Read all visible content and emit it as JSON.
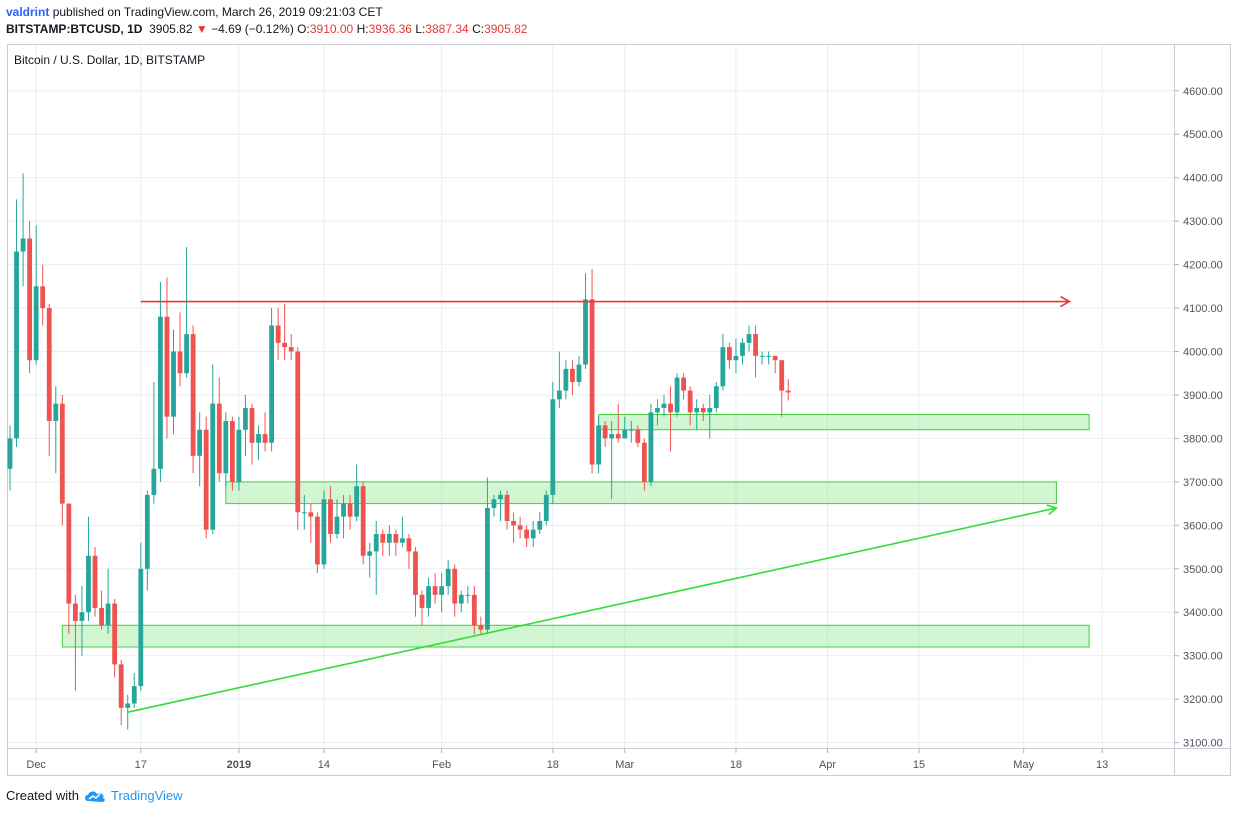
{
  "header": {
    "user": "valdrint",
    "published": "published on TradingView.com, March 26, 2019 09:21:03 CET",
    "symbol": "BITSTAMP:BTCUSD, 1D",
    "last": "3905.82",
    "change_arrow": "▼",
    "change": "−4.69 (−0.12%)",
    "o_label": "O:",
    "o": "3910.00",
    "h_label": "H:",
    "h": "3936.36",
    "l_label": "L:",
    "l": "3887.34",
    "c_label": "C:",
    "c": "3905.82"
  },
  "footer": {
    "created_with": "Created with",
    "brand": "TradingView"
  },
  "colors": {
    "up": "#26a69a",
    "down": "#ef5350",
    "resistance_line": "#e53935",
    "support_zone": "#5ee05e",
    "trendline": "#33dd33",
    "grid": "#e9eef3"
  },
  "chart_data": {
    "type": "candlestick",
    "title": "Bitcoin / U.S. Dollar, 1D, BITSTAMP",
    "ylim": [
      3060,
      4680
    ],
    "y_ticks": [
      "4600.00",
      "4500.00",
      "4400.00",
      "4300.00",
      "4200.00",
      "4100.00",
      "4000.00",
      "3900.00",
      "3800.00",
      "3700.00",
      "3600.00",
      "3500.00",
      "3400.00",
      "3300.00",
      "3200.00",
      "3100.00"
    ],
    "x_ticks": [
      "Dec",
      "17",
      "2019",
      "14",
      "Feb",
      "18",
      "Mar",
      "18",
      "Apr",
      "15",
      "May",
      "13"
    ],
    "grid": true,
    "candles": [
      {
        "date": "2018-11-27",
        "open": 3730,
        "high": 3830,
        "low": 3680,
        "close": 3800
      },
      {
        "date": "2018-11-28",
        "open": 3800,
        "high": 4350,
        "low": 3780,
        "close": 4230
      },
      {
        "date": "2018-11-29",
        "open": 4230,
        "high": 4410,
        "low": 4150,
        "close": 4260
      },
      {
        "date": "2018-11-30",
        "open": 4260,
        "high": 4300,
        "low": 3950,
        "close": 3980
      },
      {
        "date": "2018-12-01",
        "open": 3980,
        "high": 4290,
        "low": 3970,
        "close": 4150
      },
      {
        "date": "2018-12-02",
        "open": 4150,
        "high": 4200,
        "low": 4060,
        "close": 4100
      },
      {
        "date": "2018-12-03",
        "open": 4100,
        "high": 4110,
        "low": 3760,
        "close": 3840
      },
      {
        "date": "2018-12-04",
        "open": 3840,
        "high": 3920,
        "low": 3720,
        "close": 3880
      },
      {
        "date": "2018-12-05",
        "open": 3880,
        "high": 3900,
        "low": 3600,
        "close": 3650
      },
      {
        "date": "2018-12-06",
        "open": 3650,
        "high": 3650,
        "low": 3350,
        "close": 3420
      },
      {
        "date": "2018-12-07",
        "open": 3420,
        "high": 3440,
        "low": 3220,
        "close": 3380
      },
      {
        "date": "2018-12-08",
        "open": 3380,
        "high": 3460,
        "low": 3300,
        "close": 3400
      },
      {
        "date": "2018-12-09",
        "open": 3400,
        "high": 3620,
        "low": 3380,
        "close": 3530
      },
      {
        "date": "2018-12-10",
        "open": 3530,
        "high": 3550,
        "low": 3390,
        "close": 3410
      },
      {
        "date": "2018-12-11",
        "open": 3410,
        "high": 3450,
        "low": 3360,
        "close": 3370
      },
      {
        "date": "2018-12-12",
        "open": 3370,
        "high": 3500,
        "low": 3350,
        "close": 3420
      },
      {
        "date": "2018-12-13",
        "open": 3420,
        "high": 3430,
        "low": 3250,
        "close": 3280
      },
      {
        "date": "2018-12-14",
        "open": 3280,
        "high": 3290,
        "low": 3140,
        "close": 3180
      },
      {
        "date": "2018-12-15",
        "open": 3180,
        "high": 3210,
        "low": 3130,
        "close": 3190
      },
      {
        "date": "2018-12-16",
        "open": 3190,
        "high": 3260,
        "low": 3180,
        "close": 3230
      },
      {
        "date": "2018-12-17",
        "open": 3230,
        "high": 3560,
        "low": 3220,
        "close": 3500
      },
      {
        "date": "2018-12-18",
        "open": 3500,
        "high": 3680,
        "low": 3450,
        "close": 3670
      },
      {
        "date": "2018-12-19",
        "open": 3670,
        "high": 3930,
        "low": 3650,
        "close": 3730
      },
      {
        "date": "2018-12-20",
        "open": 3730,
        "high": 4160,
        "low": 3700,
        "close": 4080
      },
      {
        "date": "2018-12-21",
        "open": 4080,
        "high": 4170,
        "low": 3800,
        "close": 3850
      },
      {
        "date": "2018-12-22",
        "open": 3850,
        "high": 4050,
        "low": 3810,
        "close": 4000
      },
      {
        "date": "2018-12-23",
        "open": 4000,
        "high": 4090,
        "low": 3920,
        "close": 3950
      },
      {
        "date": "2018-12-24",
        "open": 3950,
        "high": 4240,
        "low": 3940,
        "close": 4040
      },
      {
        "date": "2018-12-25",
        "open": 4040,
        "high": 4060,
        "low": 3720,
        "close": 3760
      },
      {
        "date": "2018-12-26",
        "open": 3760,
        "high": 3860,
        "low": 3690,
        "close": 3820
      },
      {
        "date": "2018-12-27",
        "open": 3820,
        "high": 3850,
        "low": 3570,
        "close": 3590
      },
      {
        "date": "2018-12-28",
        "open": 3590,
        "high": 3970,
        "low": 3580,
        "close": 3880
      },
      {
        "date": "2018-12-29",
        "open": 3880,
        "high": 3940,
        "low": 3700,
        "close": 3720
      },
      {
        "date": "2018-12-30",
        "open": 3720,
        "high": 3860,
        "low": 3690,
        "close": 3840
      },
      {
        "date": "2018-12-31",
        "open": 3840,
        "high": 3850,
        "low": 3680,
        "close": 3700
      },
      {
        "date": "2019-01-01",
        "open": 3700,
        "high": 3850,
        "low": 3680,
        "close": 3820
      },
      {
        "date": "2019-01-02",
        "open": 3820,
        "high": 3900,
        "low": 3760,
        "close": 3870
      },
      {
        "date": "2019-01-03",
        "open": 3870,
        "high": 3880,
        "low": 3740,
        "close": 3790
      },
      {
        "date": "2019-01-04",
        "open": 3790,
        "high": 3830,
        "low": 3750,
        "close": 3810
      },
      {
        "date": "2019-01-05",
        "open": 3810,
        "high": 3860,
        "low": 3770,
        "close": 3790
      },
      {
        "date": "2019-01-06",
        "open": 3790,
        "high": 4100,
        "low": 3770,
        "close": 4060
      },
      {
        "date": "2019-01-07",
        "open": 4060,
        "high": 4100,
        "low": 3980,
        "close": 4020
      },
      {
        "date": "2019-01-08",
        "open": 4020,
        "high": 4110,
        "low": 3980,
        "close": 4010
      },
      {
        "date": "2019-01-09",
        "open": 4010,
        "high": 4040,
        "low": 3980,
        "close": 4000
      },
      {
        "date": "2019-01-10",
        "open": 4000,
        "high": 4010,
        "low": 3590,
        "close": 3630
      },
      {
        "date": "2019-01-11",
        "open": 3630,
        "high": 3670,
        "low": 3590,
        "close": 3630
      },
      {
        "date": "2019-01-12",
        "open": 3630,
        "high": 3650,
        "low": 3560,
        "close": 3620
      },
      {
        "date": "2019-01-13",
        "open": 3620,
        "high": 3630,
        "low": 3490,
        "close": 3510
      },
      {
        "date": "2019-01-14",
        "open": 3510,
        "high": 3680,
        "low": 3500,
        "close": 3660
      },
      {
        "date": "2019-01-15",
        "open": 3660,
        "high": 3690,
        "low": 3560,
        "close": 3580
      },
      {
        "date": "2019-01-16",
        "open": 3580,
        "high": 3660,
        "low": 3570,
        "close": 3620
      },
      {
        "date": "2019-01-17",
        "open": 3620,
        "high": 3670,
        "low": 3570,
        "close": 3650
      },
      {
        "date": "2019-01-18",
        "open": 3650,
        "high": 3670,
        "low": 3590,
        "close": 3620
      },
      {
        "date": "2019-01-19",
        "open": 3620,
        "high": 3740,
        "low": 3610,
        "close": 3690
      },
      {
        "date": "2019-01-20",
        "open": 3690,
        "high": 3700,
        "low": 3510,
        "close": 3530
      },
      {
        "date": "2019-01-21",
        "open": 3530,
        "high": 3560,
        "low": 3480,
        "close": 3540
      },
      {
        "date": "2019-01-22",
        "open": 3540,
        "high": 3610,
        "low": 3440,
        "close": 3580
      },
      {
        "date": "2019-01-23",
        "open": 3580,
        "high": 3590,
        "low": 3530,
        "close": 3560
      },
      {
        "date": "2019-01-24",
        "open": 3560,
        "high": 3600,
        "low": 3530,
        "close": 3580
      },
      {
        "date": "2019-01-25",
        "open": 3580,
        "high": 3590,
        "low": 3530,
        "close": 3560
      },
      {
        "date": "2019-01-26",
        "open": 3560,
        "high": 3620,
        "low": 3550,
        "close": 3570
      },
      {
        "date": "2019-01-27",
        "open": 3570,
        "high": 3580,
        "low": 3500,
        "close": 3540
      },
      {
        "date": "2019-01-28",
        "open": 3540,
        "high": 3550,
        "low": 3390,
        "close": 3440
      },
      {
        "date": "2019-01-29",
        "open": 3440,
        "high": 3450,
        "low": 3370,
        "close": 3410
      },
      {
        "date": "2019-01-30",
        "open": 3410,
        "high": 3480,
        "low": 3390,
        "close": 3460
      },
      {
        "date": "2019-01-31",
        "open": 3460,
        "high": 3490,
        "low": 3420,
        "close": 3440
      },
      {
        "date": "2019-02-01",
        "open": 3440,
        "high": 3490,
        "low": 3400,
        "close": 3460
      },
      {
        "date": "2019-02-02",
        "open": 3460,
        "high": 3520,
        "low": 3440,
        "close": 3500
      },
      {
        "date": "2019-02-03",
        "open": 3500,
        "high": 3510,
        "low": 3390,
        "close": 3420
      },
      {
        "date": "2019-02-04",
        "open": 3420,
        "high": 3450,
        "low": 3400,
        "close": 3440
      },
      {
        "date": "2019-02-05",
        "open": 3440,
        "high": 3460,
        "low": 3420,
        "close": 3440
      },
      {
        "date": "2019-02-06",
        "open": 3440,
        "high": 3460,
        "low": 3350,
        "close": 3370
      },
      {
        "date": "2019-02-07",
        "open": 3370,
        "high": 3390,
        "low": 3350,
        "close": 3360
      },
      {
        "date": "2019-02-08",
        "open": 3360,
        "high": 3710,
        "low": 3350,
        "close": 3640
      },
      {
        "date": "2019-02-09",
        "open": 3640,
        "high": 3670,
        "low": 3620,
        "close": 3660
      },
      {
        "date": "2019-02-10",
        "open": 3660,
        "high": 3680,
        "low": 3610,
        "close": 3670
      },
      {
        "date": "2019-02-11",
        "open": 3670,
        "high": 3680,
        "low": 3590,
        "close": 3610
      },
      {
        "date": "2019-02-12",
        "open": 3610,
        "high": 3630,
        "low": 3560,
        "close": 3600
      },
      {
        "date": "2019-02-13",
        "open": 3600,
        "high": 3620,
        "low": 3570,
        "close": 3590
      },
      {
        "date": "2019-02-14",
        "open": 3590,
        "high": 3600,
        "low": 3550,
        "close": 3570
      },
      {
        "date": "2019-02-15",
        "open": 3570,
        "high": 3610,
        "low": 3550,
        "close": 3590
      },
      {
        "date": "2019-02-16",
        "open": 3590,
        "high": 3630,
        "low": 3580,
        "close": 3610
      },
      {
        "date": "2019-02-17",
        "open": 3610,
        "high": 3680,
        "low": 3600,
        "close": 3670
      },
      {
        "date": "2019-02-18",
        "open": 3670,
        "high": 3930,
        "low": 3650,
        "close": 3890
      },
      {
        "date": "2019-02-19",
        "open": 3890,
        "high": 4000,
        "low": 3870,
        "close": 3910
      },
      {
        "date": "2019-02-20",
        "open": 3910,
        "high": 3980,
        "low": 3890,
        "close": 3960
      },
      {
        "date": "2019-02-21",
        "open": 3960,
        "high": 3980,
        "low": 3900,
        "close": 3930
      },
      {
        "date": "2019-02-22",
        "open": 3930,
        "high": 3990,
        "low": 3920,
        "close": 3970
      },
      {
        "date": "2019-02-23",
        "open": 3970,
        "high": 4180,
        "low": 3960,
        "close": 4120
      },
      {
        "date": "2019-02-24",
        "open": 4120,
        "high": 4190,
        "low": 3720,
        "close": 3740
      },
      {
        "date": "2019-02-25",
        "open": 3740,
        "high": 3850,
        "low": 3720,
        "close": 3830
      },
      {
        "date": "2019-02-26",
        "open": 3830,
        "high": 3840,
        "low": 3780,
        "close": 3800
      },
      {
        "date": "2019-02-27",
        "open": 3800,
        "high": 3840,
        "low": 3660,
        "close": 3810
      },
      {
        "date": "2019-02-28",
        "open": 3810,
        "high": 3880,
        "low": 3790,
        "close": 3800
      },
      {
        "date": "2019-03-01",
        "open": 3800,
        "high": 3850,
        "low": 3800,
        "close": 3820
      },
      {
        "date": "2019-03-02",
        "open": 3820,
        "high": 3840,
        "low": 3790,
        "close": 3820
      },
      {
        "date": "2019-03-03",
        "open": 3820,
        "high": 3830,
        "low": 3780,
        "close": 3790
      },
      {
        "date": "2019-03-04",
        "open": 3790,
        "high": 3800,
        "low": 3680,
        "close": 3700
      },
      {
        "date": "2019-03-05",
        "open": 3700,
        "high": 3880,
        "low": 3690,
        "close": 3860
      },
      {
        "date": "2019-03-06",
        "open": 3860,
        "high": 3890,
        "low": 3830,
        "close": 3870
      },
      {
        "date": "2019-03-07",
        "open": 3870,
        "high": 3900,
        "low": 3850,
        "close": 3880
      },
      {
        "date": "2019-03-08",
        "open": 3880,
        "high": 3920,
        "low": 3770,
        "close": 3860
      },
      {
        "date": "2019-03-09",
        "open": 3860,
        "high": 3950,
        "low": 3850,
        "close": 3940
      },
      {
        "date": "2019-03-10",
        "open": 3940,
        "high": 3950,
        "low": 3890,
        "close": 3910
      },
      {
        "date": "2019-03-11",
        "open": 3910,
        "high": 3920,
        "low": 3830,
        "close": 3860
      },
      {
        "date": "2019-03-12",
        "open": 3860,
        "high": 3890,
        "low": 3820,
        "close": 3870
      },
      {
        "date": "2019-03-13",
        "open": 3870,
        "high": 3880,
        "low": 3840,
        "close": 3860
      },
      {
        "date": "2019-03-14",
        "open": 3860,
        "high": 3900,
        "low": 3800,
        "close": 3870
      },
      {
        "date": "2019-03-15",
        "open": 3870,
        "high": 3930,
        "low": 3860,
        "close": 3920
      },
      {
        "date": "2019-03-16",
        "open": 3920,
        "high": 4040,
        "low": 3910,
        "close": 4010
      },
      {
        "date": "2019-03-17",
        "open": 4010,
        "high": 4020,
        "low": 3960,
        "close": 3980
      },
      {
        "date": "2019-03-18",
        "open": 3980,
        "high": 4030,
        "low": 3950,
        "close": 3990
      },
      {
        "date": "2019-03-19",
        "open": 3990,
        "high": 4030,
        "low": 3970,
        "close": 4020
      },
      {
        "date": "2019-03-20",
        "open": 4020,
        "high": 4060,
        "low": 4000,
        "close": 4040
      },
      {
        "date": "2019-03-21",
        "open": 4040,
        "high": 4060,
        "low": 3940,
        "close": 3990
      },
      {
        "date": "2019-03-22",
        "open": 3990,
        "high": 4000,
        "low": 3970,
        "close": 3990
      },
      {
        "date": "2019-03-23",
        "open": 3990,
        "high": 4000,
        "low": 3970,
        "close": 3990
      },
      {
        "date": "2019-03-24",
        "open": 3990,
        "high": 3990,
        "low": 3950,
        "close": 3980
      },
      {
        "date": "2019-03-25",
        "open": 3980,
        "high": 3980,
        "low": 3850,
        "close": 3910
      },
      {
        "date": "2019-03-26",
        "open": 3910,
        "high": 3936.36,
        "low": 3887.34,
        "close": 3905.82
      }
    ],
    "annotations": {
      "resistance": {
        "price": 4115,
        "from": "2018-12-17",
        "to": "2019-05-08"
      },
      "zones": [
        {
          "from": "2019-02-25",
          "to": "2019-05-11",
          "low": 3820,
          "high": 3855
        },
        {
          "from": "2018-12-30",
          "to": "2019-05-06",
          "low": 3650,
          "high": 3700
        },
        {
          "from": "2018-12-05",
          "to": "2019-05-11",
          "low": 3320,
          "high": 3370
        }
      ],
      "trendline": {
        "from_date": "2018-12-15",
        "from_price": 3170,
        "to_date": "2019-05-06",
        "to_price": 3640
      }
    }
  }
}
